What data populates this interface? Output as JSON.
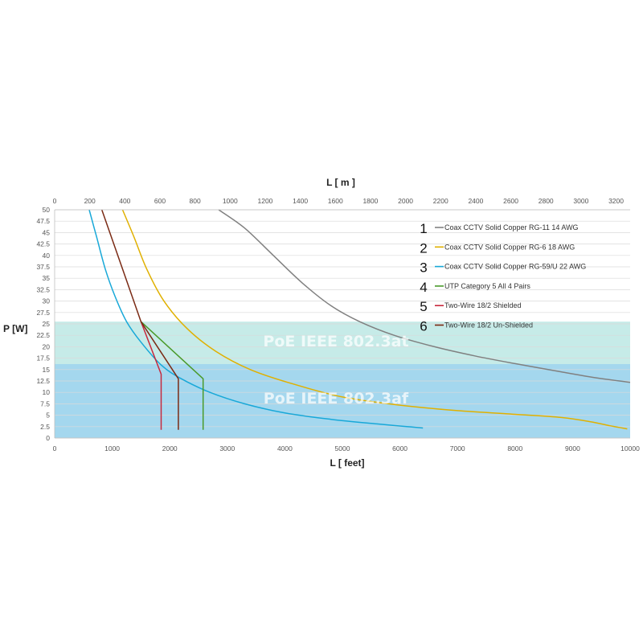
{
  "chart_data": {
    "type": "line",
    "xlabel": "L [ feet]",
    "x2label": "L [ m ]",
    "ylabel": "P [W]",
    "xlim": [
      0,
      10000
    ],
    "x2lim": [
      0,
      3280
    ],
    "ylim": [
      0,
      50
    ],
    "x_ticks": [
      "0",
      "1000",
      "2000",
      "3000",
      "4000",
      "5000",
      "6000",
      "7000",
      "8000",
      "9000",
      "10000"
    ],
    "x2_ticks": [
      "0",
      "200",
      "400",
      "600",
      "800",
      "1000",
      "1200",
      "1400",
      "1600",
      "1800",
      "2000",
      "2200",
      "2400",
      "2600",
      "2800",
      "3000",
      "3200"
    ],
    "y_ticks": [
      "0",
      "2.5",
      "5",
      "7.5",
      "10",
      "12.5",
      "15",
      "17.5",
      "20",
      "22.5",
      "25",
      "27.5",
      "30",
      "32.5",
      "35",
      "37.5",
      "40",
      "42.5",
      "45",
      "47.5",
      "50"
    ],
    "grid": "horizontal",
    "bands": [
      {
        "label": "PoE IEEE 802.3at",
        "from": 0,
        "to": 25.5,
        "color": "#c6ebe8"
      },
      {
        "label": "PoE IEEE 802.3af",
        "from": 0,
        "to": 16.2,
        "color": "#a4d7ee"
      }
    ],
    "legend_position": "right",
    "series": [
      {
        "number": "1",
        "name": "Coax  CCTV  Solid Copper RG-11 14 AWG",
        "color": "#808080",
        "points": [
          [
            2850,
            50
          ],
          [
            3300,
            46
          ],
          [
            3800,
            40
          ],
          [
            4300,
            34
          ],
          [
            4800,
            29
          ],
          [
            5300,
            25.5
          ],
          [
            5900,
            22.5
          ],
          [
            6600,
            20
          ],
          [
            7300,
            18
          ],
          [
            8000,
            16.3
          ],
          [
            8800,
            14.5
          ],
          [
            9400,
            13.2
          ],
          [
            10000,
            12.2
          ]
        ]
      },
      {
        "number": "2",
        "name": "Coax  CCTV  Solid Copper RG-6 18 AWG",
        "color": "#e0b000",
        "points": [
          [
            1180,
            50
          ],
          [
            1380,
            44
          ],
          [
            1600,
            37
          ],
          [
            1900,
            30
          ],
          [
            2300,
            24
          ],
          [
            2800,
            19
          ],
          [
            3400,
            15
          ],
          [
            4100,
            12
          ],
          [
            5000,
            9
          ],
          [
            6000,
            7.2
          ],
          [
            7000,
            6
          ],
          [
            8000,
            5.2
          ],
          [
            8800,
            4.5
          ],
          [
            9300,
            3.6
          ],
          [
            9650,
            2.7
          ],
          [
            9950,
            2
          ]
        ]
      },
      {
        "number": "3",
        "name": "Coax  CCTV  Solid Copper RG-59/U 22 AWG",
        "color": "#18a8d8",
        "points": [
          [
            600,
            50
          ],
          [
            730,
            44
          ],
          [
            880,
            37
          ],
          [
            1050,
            31
          ],
          [
            1250,
            25.5
          ],
          [
            1500,
            21
          ],
          [
            1850,
            16
          ],
          [
            2200,
            13
          ],
          [
            2700,
            10
          ],
          [
            3300,
            7.5
          ],
          [
            4000,
            5.5
          ],
          [
            4800,
            4.1
          ],
          [
            5600,
            3.1
          ],
          [
            6400,
            2.2
          ]
        ]
      },
      {
        "number": "4",
        "name": "UTP Category 5 All 4 Pairs",
        "color": "#4a9a2a",
        "points": [
          [
            1500,
            25.5
          ],
          [
            2580,
            13
          ],
          [
            2580,
            1.8
          ]
        ]
      },
      {
        "number": "5",
        "name": "Two-Wire 18/2 Shielded",
        "color": "#c8283c",
        "points": [
          [
            1500,
            25.5
          ],
          [
            1850,
            14
          ],
          [
            1850,
            1.8
          ]
        ]
      },
      {
        "number": "6",
        "name": "Two-Wire 18/2 Un-Shielded",
        "color": "#7a2a14",
        "points": [
          [
            820,
            50
          ],
          [
            1500,
            25.5
          ],
          [
            2150,
            13
          ],
          [
            2150,
            1.8
          ]
        ]
      }
    ]
  }
}
